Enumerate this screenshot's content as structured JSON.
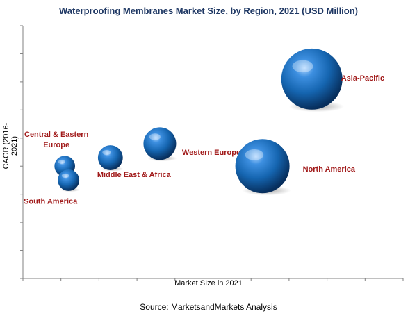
{
  "chart_data": {
    "type": "scatter",
    "title": "Waterproofing Membranes Market Size, by Region, 2021 (USD Million)",
    "xlabel": "Market SIze in 2021",
    "ylabel": "CAGR (2016-2021)",
    "grid": false,
    "xlim": [
      0,
      10
    ],
    "ylim": [
      0,
      9
    ],
    "series": [
      {
        "label": "Central & Eastern Europe",
        "x": 1.1,
        "y": 4.0,
        "size": 1.1
      },
      {
        "label": "South America",
        "x": 1.2,
        "y": 3.5,
        "size": 1.2
      },
      {
        "label": "Middle East & Africa",
        "x": 2.3,
        "y": 4.3,
        "size": 1.6
      },
      {
        "label": "Western Europe",
        "x": 3.6,
        "y": 4.8,
        "size": 2.5
      },
      {
        "label": "North America",
        "x": 6.3,
        "y": 4.0,
        "size": 5.0
      },
      {
        "label": "Asia-Pacific",
        "x": 7.6,
        "y": 7.1,
        "size": 5.8
      }
    ],
    "label_color": "#a11a1a",
    "bubble_color": "#1565b0"
  },
  "source": "Source: MarketsandMarkets Analysis"
}
